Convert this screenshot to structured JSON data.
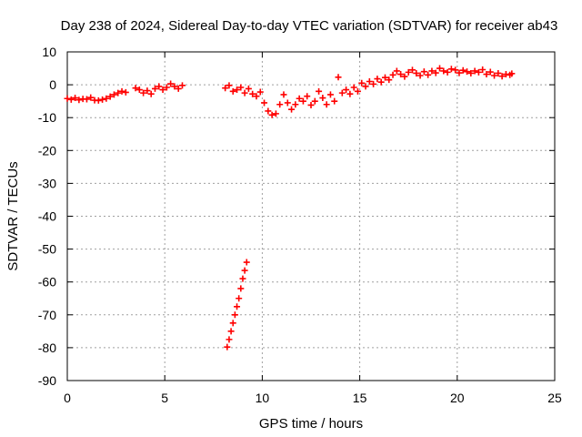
{
  "chart_data": {
    "type": "scatter",
    "title": "Day 238 of 2024, Sidereal Day-to-day VTEC variation (SDTVAR) for receiver ab43",
    "xlabel": "GPS time / hours",
    "ylabel": "SDTVAR / TECUs",
    "xlim": [
      0,
      25
    ],
    "ylim": [
      -90,
      10
    ],
    "xticks": [
      0,
      5,
      10,
      15,
      20,
      25
    ],
    "yticks": [
      -90,
      -80,
      -70,
      -60,
      -50,
      -40,
      -30,
      -20,
      -10,
      0,
      10
    ],
    "grid": true,
    "marker": "+",
    "color": "#ff0000",
    "series": [
      {
        "name": "SDTVAR",
        "points": [
          [
            0.0,
            -4.2
          ],
          [
            0.2,
            -4.5
          ],
          [
            0.4,
            -4.0
          ],
          [
            0.6,
            -4.6
          ],
          [
            0.8,
            -4.3
          ],
          [
            1.0,
            -4.4
          ],
          [
            1.2,
            -3.9
          ],
          [
            1.4,
            -4.7
          ],
          [
            1.6,
            -4.8
          ],
          [
            1.8,
            -4.5
          ],
          [
            2.0,
            -4.2
          ],
          [
            2.2,
            -3.6
          ],
          [
            2.4,
            -3.0
          ],
          [
            2.6,
            -2.5
          ],
          [
            2.8,
            -2.0
          ],
          [
            3.0,
            -2.3
          ],
          [
            3.5,
            -1.0
          ],
          [
            3.7,
            -1.5
          ],
          [
            3.9,
            -2.5
          ],
          [
            4.1,
            -1.8
          ],
          [
            4.3,
            -2.8
          ],
          [
            4.5,
            -1.2
          ],
          [
            4.7,
            -0.5
          ],
          [
            4.9,
            -1.5
          ],
          [
            5.1,
            -0.8
          ],
          [
            5.3,
            0.3
          ],
          [
            5.5,
            -0.5
          ],
          [
            5.7,
            -1.2
          ],
          [
            5.9,
            -0.2
          ],
          [
            8.1,
            -1.0
          ],
          [
            8.3,
            -0.2
          ],
          [
            8.5,
            -2.0
          ],
          [
            8.7,
            -1.5
          ],
          [
            8.9,
            -0.8
          ],
          [
            9.1,
            -2.5
          ],
          [
            9.3,
            -1.2
          ],
          [
            9.5,
            -2.8
          ],
          [
            9.7,
            -3.5
          ],
          [
            9.9,
            -2.2
          ],
          [
            10.1,
            -5.5
          ],
          [
            10.3,
            -8.0
          ],
          [
            10.5,
            -9.2
          ],
          [
            10.7,
            -8.8
          ],
          [
            10.9,
            -6.0
          ],
          [
            11.1,
            -3.0
          ],
          [
            11.3,
            -5.5
          ],
          [
            11.5,
            -7.5
          ],
          [
            11.7,
            -6.0
          ],
          [
            11.9,
            -4.2
          ],
          [
            12.1,
            -5.0
          ],
          [
            12.3,
            -3.5
          ],
          [
            12.5,
            -6.2
          ],
          [
            12.7,
            -5.0
          ],
          [
            12.9,
            -2.0
          ],
          [
            13.1,
            -4.0
          ],
          [
            13.3,
            -6.0
          ],
          [
            13.5,
            -3.0
          ],
          [
            13.7,
            -5.0
          ],
          [
            13.9,
            2.3
          ],
          [
            14.1,
            -2.5
          ],
          [
            14.3,
            -1.5
          ],
          [
            14.5,
            -2.8
          ],
          [
            14.7,
            -0.8
          ],
          [
            14.9,
            -2.0
          ],
          [
            15.1,
            0.5
          ],
          [
            15.3,
            -0.5
          ],
          [
            15.5,
            1.0
          ],
          [
            15.7,
            0.2
          ],
          [
            15.9,
            1.8
          ],
          [
            16.1,
            0.8
          ],
          [
            16.3,
            2.2
          ],
          [
            16.5,
            1.5
          ],
          [
            16.7,
            3.0
          ],
          [
            16.9,
            4.2
          ],
          [
            17.1,
            3.2
          ],
          [
            17.3,
            2.5
          ],
          [
            17.5,
            3.8
          ],
          [
            17.7,
            4.5
          ],
          [
            17.9,
            3.5
          ],
          [
            18.1,
            2.8
          ],
          [
            18.3,
            4.0
          ],
          [
            18.5,
            3.0
          ],
          [
            18.7,
            4.2
          ],
          [
            18.9,
            3.6
          ],
          [
            19.1,
            5.0
          ],
          [
            19.3,
            4.2
          ],
          [
            19.5,
            3.8
          ],
          [
            19.7,
            4.8
          ],
          [
            19.9,
            4.5
          ],
          [
            20.1,
            3.6
          ],
          [
            20.3,
            4.4
          ],
          [
            20.5,
            4.0
          ],
          [
            20.7,
            3.5
          ],
          [
            20.9,
            4.2
          ],
          [
            21.1,
            3.8
          ],
          [
            21.3,
            4.6
          ],
          [
            21.5,
            3.2
          ],
          [
            21.7,
            3.9
          ],
          [
            21.9,
            2.8
          ],
          [
            22.1,
            3.5
          ],
          [
            22.3,
            2.6
          ],
          [
            22.5,
            3.2
          ],
          [
            22.7,
            3.0
          ],
          [
            22.8,
            3.4
          ],
          [
            8.2,
            -79.8
          ],
          [
            8.3,
            -77.5
          ],
          [
            8.4,
            -75.0
          ],
          [
            8.5,
            -72.5
          ],
          [
            8.6,
            -70.0
          ],
          [
            8.7,
            -67.5
          ],
          [
            8.8,
            -65.0
          ],
          [
            8.9,
            -62.0
          ],
          [
            9.0,
            -59.0
          ],
          [
            9.1,
            -56.5
          ],
          [
            9.2,
            -54.0
          ]
        ]
      }
    ]
  }
}
